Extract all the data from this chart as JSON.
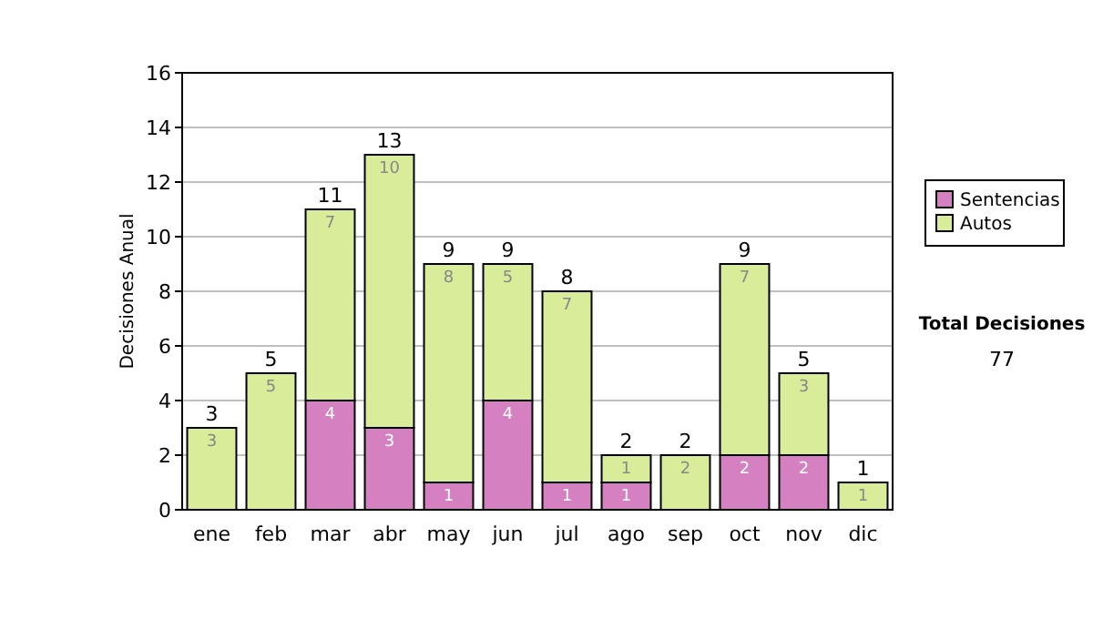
{
  "chart_data": {
    "type": "bar",
    "stacked": true,
    "ylabel": "Decisiones Anual",
    "categories": [
      "ene",
      "feb",
      "mar",
      "abr",
      "may",
      "jun",
      "jul",
      "ago",
      "sep",
      "oct",
      "nov",
      "dic"
    ],
    "series": [
      {
        "name": "Sentencias",
        "color": "#d580c0",
        "values": [
          0,
          0,
          4,
          3,
          1,
          4,
          1,
          1,
          0,
          2,
          2,
          0
        ],
        "value_labels": [
          null,
          null,
          "4",
          "3",
          "1",
          "4",
          "1",
          "1",
          null,
          "2",
          "2",
          null
        ]
      },
      {
        "name": "Autos",
        "color": "#d9ec9a",
        "values": [
          3,
          5,
          7,
          10,
          8,
          5,
          7,
          1,
          2,
          7,
          3,
          1
        ],
        "value_labels": [
          "3",
          "5",
          "7",
          "10",
          "8",
          "5",
          "7",
          "1",
          "2",
          "7",
          "3",
          "1"
        ]
      }
    ],
    "totals": [
      "3",
      "5",
      "11",
      "13",
      "9",
      "9",
      "8",
      "2",
      "2",
      "9",
      "5",
      "1"
    ],
    "ylim": [
      0,
      16
    ],
    "yticks": [
      0,
      2,
      4,
      6,
      8,
      10,
      12,
      14,
      16
    ],
    "grid": "y",
    "legend": "right",
    "annotations": [
      "Total Decisiones",
      "77"
    ]
  }
}
